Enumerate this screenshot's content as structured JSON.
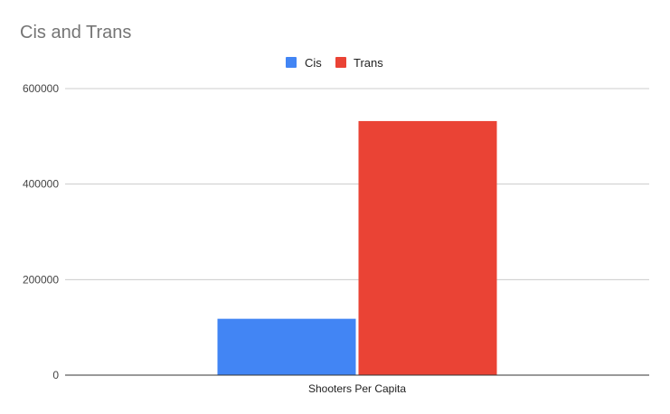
{
  "chart_data": {
    "type": "bar",
    "title": "Cis and Trans",
    "categories": [
      "Shooters Per Capita"
    ],
    "series": [
      {
        "name": "Cis",
        "values": [
          118000
        ],
        "color": "#4285f4"
      },
      {
        "name": "Trans",
        "values": [
          532000
        ],
        "color": "#ea4335"
      }
    ],
    "xlabel": "",
    "ylabel": "",
    "ylim": [
      0,
      600000
    ],
    "yticks": [
      "0",
      "200000",
      "400000",
      "600000"
    ],
    "grid": true,
    "legend_position": "top-center"
  }
}
